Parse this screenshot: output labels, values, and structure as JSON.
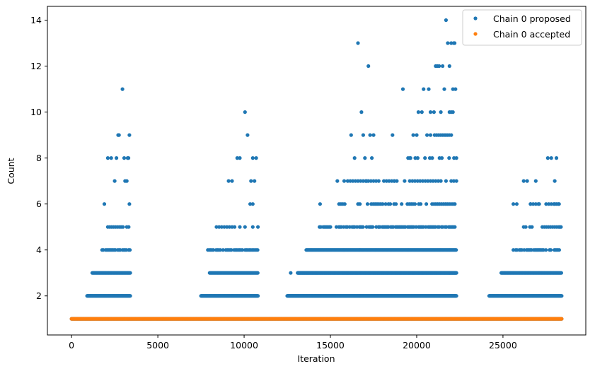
{
  "chart_data": {
    "type": "scatter",
    "xlabel": "Iteration",
    "ylabel": "Count",
    "xlim": [
      -1400,
      29800
    ],
    "ylim": [
      0.3,
      14.6
    ],
    "x_ticks": [
      0,
      5000,
      10000,
      15000,
      20000,
      25000
    ],
    "y_ticks": [
      2,
      4,
      6,
      8,
      10,
      12,
      14
    ],
    "grid": false,
    "legend_position": "top-right",
    "series": [
      {
        "name": "Chain 0 proposed",
        "color": "#1f77b4",
        "points_description": "dense band at y=1 across all iterations; bursts of higher counts in four active regions",
        "segments": [
          {
            "x_start": 0,
            "x_end": 28400,
            "y": 1,
            "step": 40
          },
          {
            "x_start": 900,
            "x_end": 3400,
            "y": 2,
            "step": 25
          },
          {
            "x_start": 1200,
            "x_end": 3400,
            "y": 3,
            "step": 40
          },
          {
            "x_start": 1700,
            "x_end": 3400,
            "y": 4,
            "step": 70
          },
          {
            "x_start": 2100,
            "x_end": 3400,
            "y": 5,
            "step": 110
          },
          {
            "x_start": 7500,
            "x_end": 10800,
            "y": 2,
            "step": 25
          },
          {
            "x_start": 8000,
            "x_end": 10800,
            "y": 3,
            "step": 45
          },
          {
            "x_start": 7900,
            "x_end": 10800,
            "y": 4,
            "step": 80
          },
          {
            "x_start": 8400,
            "x_end": 10800,
            "y": 5,
            "step": 150
          },
          {
            "x_start": 12500,
            "x_end": 22300,
            "y": 2,
            "step": 20
          },
          {
            "x_start": 13100,
            "x_end": 22300,
            "y": 3,
            "step": 25
          },
          {
            "x_start": 13600,
            "x_end": 22300,
            "y": 4,
            "step": 45
          },
          {
            "x_start": 14300,
            "x_end": 22300,
            "y": 5,
            "step": 70
          },
          {
            "x_start": 15500,
            "x_end": 22300,
            "y": 6,
            "step": 110
          },
          {
            "x_start": 16000,
            "x_end": 22300,
            "y": 7,
            "step": 150
          },
          {
            "x_start": 19500,
            "x_end": 22300,
            "y": 8,
            "step": 140
          },
          {
            "x_start": 20800,
            "x_end": 22300,
            "y": 9,
            "step": 120
          },
          {
            "x_start": 24200,
            "x_end": 28400,
            "y": 2,
            "step": 25
          },
          {
            "x_start": 24900,
            "x_end": 28400,
            "y": 3,
            "step": 40
          },
          {
            "x_start": 25600,
            "x_end": 28400,
            "y": 4,
            "step": 70
          },
          {
            "x_start": 26200,
            "x_end": 28400,
            "y": 5,
            "step": 120
          },
          {
            "x_start": 26600,
            "x_end": 28400,
            "y": 6,
            "step": 150
          }
        ],
        "points": [
          [
            1900,
            6
          ],
          [
            2100,
            8
          ],
          [
            2300,
            8
          ],
          [
            2500,
            7
          ],
          [
            2600,
            8
          ],
          [
            2700,
            9
          ],
          [
            2750,
            9
          ],
          [
            2950,
            11
          ],
          [
            3050,
            8
          ],
          [
            3100,
            7
          ],
          [
            3200,
            7
          ],
          [
            3250,
            8
          ],
          [
            3350,
            9
          ],
          [
            3300,
            8
          ],
          [
            3350,
            6
          ],
          [
            9100,
            7
          ],
          [
            9300,
            7
          ],
          [
            9600,
            8
          ],
          [
            9750,
            8
          ],
          [
            10050,
            10
          ],
          [
            10200,
            9
          ],
          [
            10500,
            8
          ],
          [
            10600,
            7
          ],
          [
            10700,
            8
          ],
          [
            10400,
            7
          ],
          [
            10350,
            6
          ],
          [
            10500,
            6
          ],
          [
            12700,
            3
          ],
          [
            14400,
            6
          ],
          [
            15400,
            7
          ],
          [
            15800,
            7
          ],
          [
            16200,
            9
          ],
          [
            16400,
            8
          ],
          [
            16600,
            13
          ],
          [
            16800,
            10
          ],
          [
            16900,
            9
          ],
          [
            17000,
            8
          ],
          [
            17100,
            7
          ],
          [
            17200,
            12
          ],
          [
            17300,
            9
          ],
          [
            17400,
            8
          ],
          [
            17500,
            9
          ],
          [
            17800,
            5
          ],
          [
            18200,
            6
          ],
          [
            18600,
            9
          ],
          [
            18700,
            7
          ],
          [
            19200,
            11
          ],
          [
            19600,
            8
          ],
          [
            19800,
            9
          ],
          [
            20000,
            9
          ],
          [
            20100,
            10
          ],
          [
            20300,
            10
          ],
          [
            20400,
            11
          ],
          [
            20600,
            9
          ],
          [
            20700,
            11
          ],
          [
            20800,
            10
          ],
          [
            21000,
            10
          ],
          [
            21100,
            12
          ],
          [
            21200,
            12
          ],
          [
            21300,
            12
          ],
          [
            21400,
            10
          ],
          [
            21500,
            12
          ],
          [
            21600,
            11
          ],
          [
            21700,
            14
          ],
          [
            21800,
            13
          ],
          [
            21900,
            12
          ],
          [
            22000,
            13
          ],
          [
            22100,
            11
          ],
          [
            22150,
            13
          ],
          [
            22200,
            13
          ],
          [
            22250,
            11
          ],
          [
            22000,
            10
          ],
          [
            22100,
            10
          ],
          [
            21900,
            10
          ],
          [
            25600,
            6
          ],
          [
            25800,
            6
          ],
          [
            26200,
            7
          ],
          [
            26400,
            7
          ],
          [
            26600,
            6
          ],
          [
            26900,
            7
          ],
          [
            27100,
            6
          ],
          [
            27600,
            8
          ],
          [
            27800,
            8
          ],
          [
            28000,
            7
          ],
          [
            28100,
            8
          ],
          [
            28200,
            6
          ],
          [
            28300,
            5
          ],
          [
            28000,
            6
          ]
        ]
      },
      {
        "name": "Chain 0 accepted",
        "color": "#ff7f0e",
        "segments": [
          {
            "x_start": 0,
            "x_end": 28400,
            "y": 1,
            "step": 40
          }
        ],
        "points": []
      }
    ]
  }
}
